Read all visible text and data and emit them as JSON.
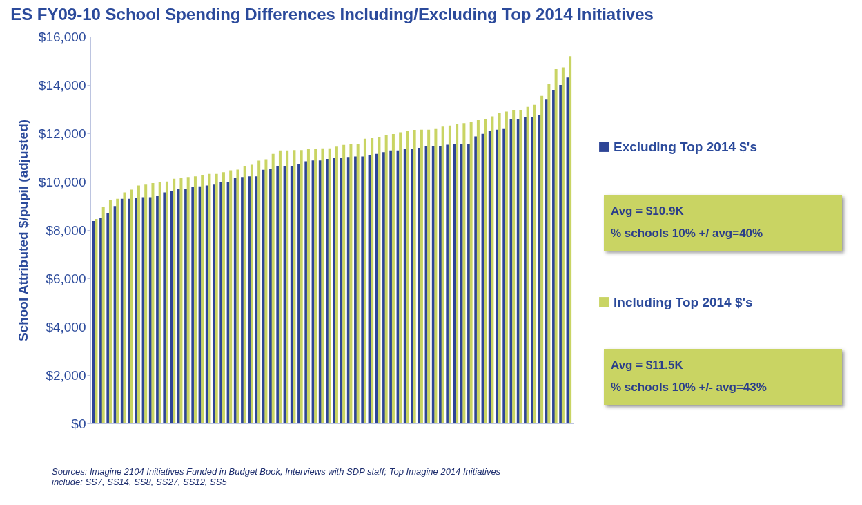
{
  "chart_data": {
    "type": "bar",
    "title": "ES FY09-10 School Spending Differences Including/Excluding Top 2014 Initiatives",
    "ylabel": "School Attributed $/pupil (adjusted)",
    "categories": [
      null,
      null,
      null,
      null,
      null,
      null,
      null,
      null,
      null,
      null,
      null,
      null,
      null,
      null,
      null,
      null,
      null,
      null,
      null,
      null,
      null,
      null,
      null,
      null,
      null,
      null,
      null,
      null,
      null,
      null,
      null,
      null,
      null,
      null,
      null,
      null,
      null,
      null,
      null,
      null,
      null,
      null,
      null,
      null,
      null,
      null,
      null,
      null,
      null,
      null,
      null,
      null,
      null,
      null,
      null,
      null,
      null,
      null,
      null,
      null,
      null,
      null,
      null,
      null,
      null,
      null,
      null,
      null
    ],
    "series": [
      {
        "name": "Excluding Top 2014 $'s",
        "color": "#2e4596",
        "values": [
          8370,
          8500,
          8700,
          8990,
          9290,
          9290,
          9330,
          9360,
          9360,
          9420,
          9560,
          9630,
          9700,
          9700,
          9770,
          9810,
          9840,
          9880,
          9990,
          9990,
          10150,
          10190,
          10220,
          10220,
          10490,
          10540,
          10630,
          10630,
          10630,
          10730,
          10840,
          10880,
          10880,
          10940,
          10970,
          10970,
          11020,
          11040,
          11040,
          11110,
          11150,
          11220,
          11290,
          11290,
          11350,
          11350,
          11400,
          11460,
          11460,
          11460,
          11530,
          11570,
          11570,
          11570,
          11870,
          11980,
          12110,
          12150,
          12180,
          12600,
          12600,
          12660,
          12660,
          12770,
          13390,
          13770,
          14000,
          14310
        ]
      },
      {
        "name": "Including Top 2014 $'s",
        "color": "#c9d463",
        "values": [
          8460,
          8940,
          9260,
          9290,
          9560,
          9670,
          9840,
          9880,
          9940,
          9990,
          10010,
          10120,
          10150,
          10190,
          10220,
          10260,
          10320,
          10320,
          10390,
          10470,
          10500,
          10660,
          10700,
          10870,
          10930,
          11150,
          11290,
          11290,
          11310,
          11310,
          11350,
          11350,
          11380,
          11380,
          11450,
          11520,
          11560,
          11560,
          11780,
          11800,
          11840,
          11930,
          11970,
          12040,
          12110,
          12140,
          12150,
          12150,
          12180,
          12280,
          12320,
          12380,
          12420,
          12460,
          12560,
          12600,
          12700,
          12830,
          12900,
          12970,
          12970,
          13090,
          13180,
          13550,
          14030,
          14660,
          14730,
          15190
        ]
      }
    ],
    "ylim": [
      0,
      16000
    ],
    "yticks": [
      {
        "value": 0,
        "label": "$0"
      },
      {
        "value": 2000,
        "label": "$2,000"
      },
      {
        "value": 4000,
        "label": "$4,000"
      },
      {
        "value": 6000,
        "label": "$6,000"
      },
      {
        "value": 8000,
        "label": "$8,000"
      },
      {
        "value": 10000,
        "label": "$10,000"
      },
      {
        "value": 12000,
        "label": "$12,000"
      },
      {
        "value": 14000,
        "label": "$14,000"
      },
      {
        "value": 16000,
        "label": "$16,000"
      }
    ],
    "legend": "right",
    "annotations": [
      "Avg = $10.9K",
      "% schools 10% +/ avg=40%",
      "Avg = $11.5K",
      "% schools 10% +/- avg=43%",
      "Sources: Imagine 2104 Initiatives Funded  in Budget Book, Interviews with SDP staff; Top Imagine 2014 Initiatives include: SS7, SS14, SS8, SS27, SS12, SS5"
    ]
  }
}
